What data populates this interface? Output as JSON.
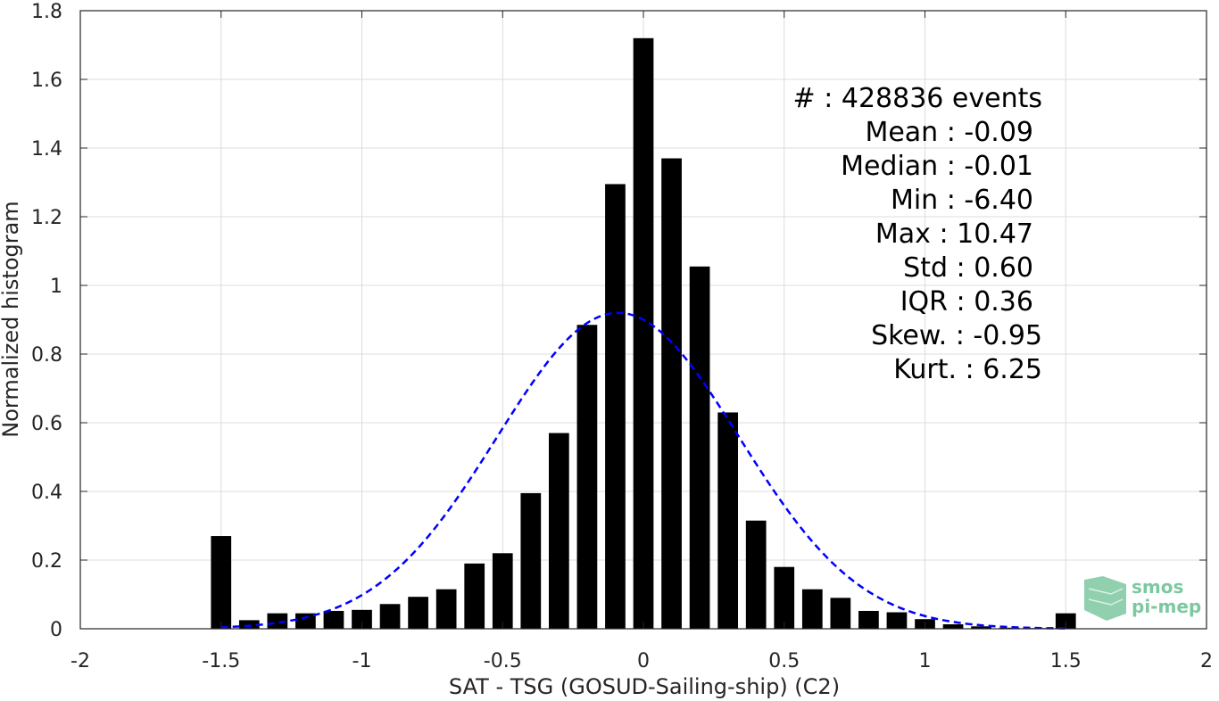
{
  "chart_data": {
    "type": "bar",
    "xlabel": "SAT - TSG (GOSUD-Sailing-ship) (C2)",
    "ylabel": "Normalized histogram",
    "xlim": [
      -2,
      2
    ],
    "ylim": [
      0,
      1.8
    ],
    "xticks": [
      -2,
      -1.5,
      -1,
      -0.5,
      0,
      0.5,
      1,
      1.5,
      2
    ],
    "xtick_labels": [
      "-2",
      "-1.5",
      "-1",
      "-0.5",
      "0",
      "0.5",
      "1",
      "1.5",
      "2"
    ],
    "yticks": [
      0,
      0.2,
      0.4,
      0.6,
      0.8,
      1,
      1.2,
      1.4,
      1.6,
      1.8
    ],
    "ytick_labels": [
      "0",
      "0.2",
      "0.4",
      "0.6",
      "0.8",
      "1",
      "1.2",
      "1.4",
      "1.6",
      "1.8"
    ],
    "grid": true,
    "bar_color": "#000000",
    "bins": [
      -1.5,
      -1.4,
      -1.3,
      -1.2,
      -1.1,
      -1.0,
      -0.9,
      -0.8,
      -0.7,
      -0.6,
      -0.5,
      -0.4,
      -0.3,
      -0.2,
      -0.1,
      0.0,
      0.1,
      0.2,
      0.3,
      0.4,
      0.5,
      0.6,
      0.7,
      0.8,
      0.9,
      1.0,
      1.1,
      1.2,
      1.3,
      1.4,
      1.5
    ],
    "values": [
      0.27,
      0.025,
      0.045,
      0.045,
      0.052,
      0.055,
      0.072,
      0.093,
      0.115,
      0.19,
      0.22,
      0.395,
      0.57,
      0.885,
      1.295,
      1.72,
      1.37,
      1.055,
      0.63,
      0.315,
      0.18,
      0.115,
      0.09,
      0.052,
      0.048,
      0.028,
      0.013,
      0.007,
      0.003,
      0.002,
      0.045
    ],
    "fit": {
      "type": "gaussian",
      "mean": -0.09,
      "std": 0.43,
      "peak": 0.92,
      "color": "#0000ff",
      "style": "dashed",
      "range": [
        -1.5,
        1.5
      ]
    },
    "stats_lines": [
      "#  : 428836 events",
      "Mean : -0.09",
      "Median : -0.01",
      "Min : -6.40",
      "Max : 10.47",
      "Std : 0.60",
      "IQR : 0.36",
      "Skew. : -0.95",
      "Kurt. : 6.25"
    ]
  },
  "logo": {
    "line1": "smos",
    "line2": "pi-mep",
    "color": "#7cc8a0"
  }
}
